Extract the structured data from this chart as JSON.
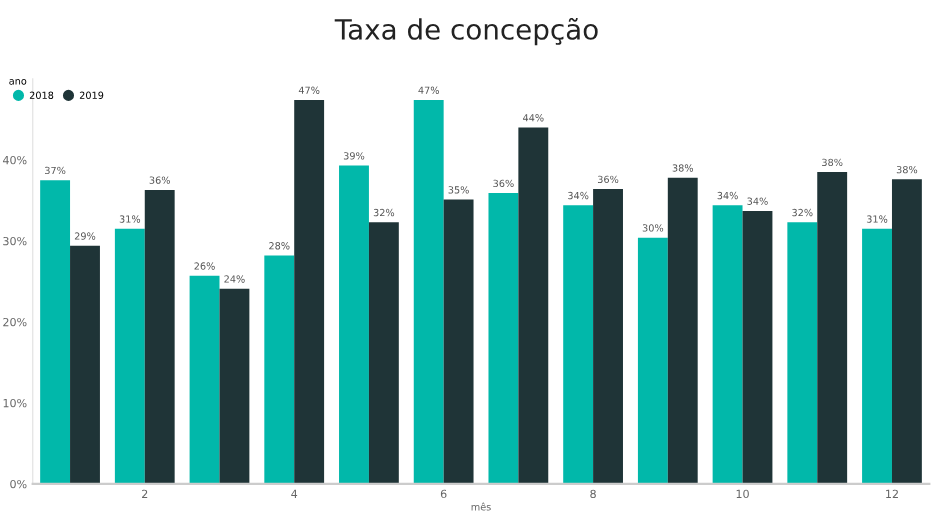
{
  "chart_data": {
    "type": "bar",
    "title": "Taxa de concepção",
    "xlabel": "mês",
    "legend_title": "ano",
    "categories": [
      null,
      "2",
      null,
      "4",
      null,
      "6",
      null,
      "8",
      null,
      "10",
      null,
      "12"
    ],
    "series": [
      {
        "name": "2018",
        "color": "#01b8aa",
        "values": [
          37.5,
          31.5,
          25.7,
          28.2,
          39.3,
          47.4,
          35.9,
          34.4,
          30.4,
          34.4,
          32.3,
          31.5
        ],
        "value_labels": [
          "37%",
          "31%",
          "26%",
          "28%",
          "39%",
          "47%",
          "36%",
          "34%",
          "30%",
          "34%",
          "32%",
          "31%"
        ]
      },
      {
        "name": "2019",
        "color": "#1f3437",
        "values": [
          29.4,
          36.3,
          24.1,
          47.4,
          32.3,
          35.1,
          44.0,
          36.4,
          37.8,
          33.7,
          38.5,
          37.6
        ],
        "value_labels": [
          "29%",
          "36%",
          "24%",
          "47%",
          "32%",
          "35%",
          "44%",
          "36%",
          "38%",
          "34%",
          "38%",
          "38%"
        ]
      }
    ],
    "ylim": [
      0,
      50
    ],
    "yticks": [
      {
        "value": 0,
        "label": "0%"
      },
      {
        "value": 10,
        "label": "10%"
      },
      {
        "value": 20,
        "label": "20%"
      },
      {
        "value": 30,
        "label": "30%"
      },
      {
        "value": 40,
        "label": "40%"
      }
    ],
    "grid": false,
    "legend": "top left"
  }
}
